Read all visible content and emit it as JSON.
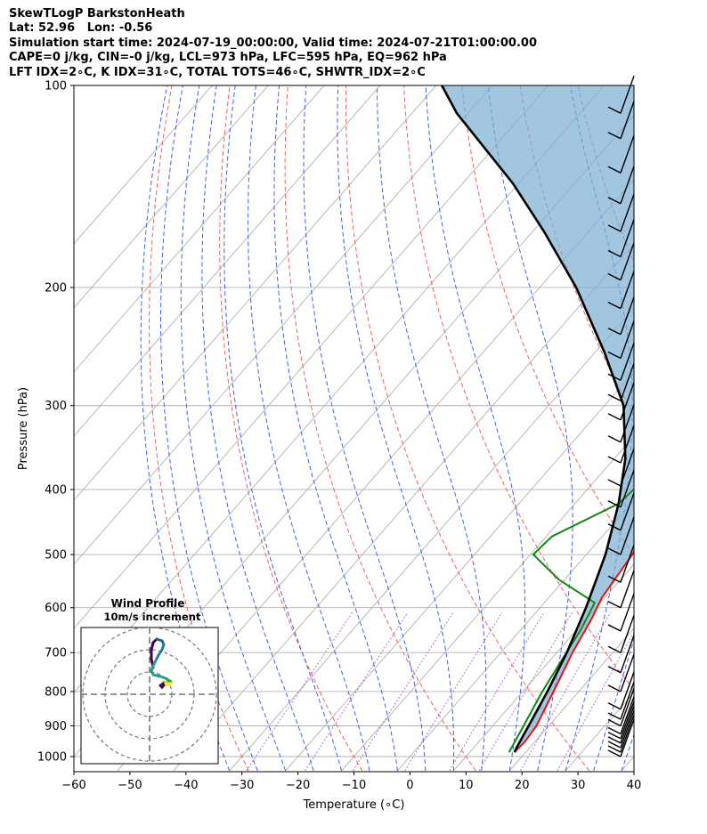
{
  "header": {
    "line1": "SkewTLogP BarkstonHeath",
    "line2": "Lat: 52.96   Lon: -0.56",
    "line3": "Simulation start time: 2024-07-19_00:00:00, Valid time: 2024-07-21T01:00:00.00",
    "line4": "CAPE=0 j/kg, CIN=-0 j/kg, LCL=973 hPa, LFC=595 hPa, EQ=962 hPa",
    "line5": "LFT IDX=2∘C, K IDX=31∘C, TOTAL TOTS=46∘C, SHWTR_IDX=2∘C"
  },
  "chart_data": {
    "type": "line",
    "title": "SkewTLogP BarkstonHeath",
    "xlabel": "Temperature (∘C)",
    "ylabel": "Pressure (hPa)",
    "xlim": [
      -60,
      40
    ],
    "ylim": [
      1050,
      100
    ],
    "y_scale": "log",
    "x_ticks": [
      -60,
      -50,
      -40,
      -30,
      -20,
      -10,
      0,
      10,
      20,
      30,
      40
    ],
    "x_tick_labels": [
      "−60",
      "−50",
      "−40",
      "−30",
      "−20",
      "−10",
      "0",
      "10",
      "20",
      "30",
      "40"
    ],
    "y_ticks": [
      1000,
      900,
      800,
      700,
      600,
      500,
      400,
      300,
      200,
      100
    ],
    "y_tick_labels": [
      "1000",
      "900",
      "800",
      "700",
      "600",
      "500",
      "400",
      "300",
      "200",
      "100"
    ],
    "grid": true,
    "series": [
      {
        "role": "temperature",
        "color": "#ee1111",
        "points": [
          [
            18,
            985
          ],
          [
            18.2,
            950
          ],
          [
            17.8,
            900
          ],
          [
            16.2,
            830
          ],
          [
            15,
            780
          ],
          [
            12.8,
            700
          ],
          [
            11,
            625
          ],
          [
            9.5,
            580
          ],
          [
            8.2,
            500
          ],
          [
            6.6,
            450
          ],
          [
            4.3,
            410
          ],
          [
            2.8,
            380
          ],
          [
            1.3,
            345
          ],
          [
            -3,
            310
          ],
          [
            -5,
            290
          ],
          [
            -4.2,
            265
          ],
          [
            -2.8,
            235
          ],
          [
            -1.6,
            218
          ],
          [
            -0.1,
            200
          ],
          [
            1,
            185
          ],
          [
            2,
            170
          ],
          [
            3.5,
            150
          ],
          [
            5,
            135
          ],
          [
            6,
            125
          ],
          [
            7.5,
            113
          ],
          [
            9,
            104
          ],
          [
            9.9,
            100
          ]
        ]
      },
      {
        "role": "dewpoint",
        "color": "#118811",
        "points": [
          [
            17,
            985
          ],
          [
            15.5,
            900
          ],
          [
            13.5,
            800
          ],
          [
            12,
            715
          ],
          [
            10.8,
            650
          ],
          [
            9,
            590
          ],
          [
            -1,
            545
          ],
          [
            -9.5,
            500
          ],
          [
            -9,
            470
          ],
          [
            -2.2,
            420
          ],
          [
            -1.2,
            380
          ],
          [
            -6.5,
            358
          ],
          [
            -7.5,
            325
          ],
          [
            -9.4,
            300
          ],
          [
            -10.8,
            278
          ],
          [
            -14,
            258
          ],
          [
            -16.6,
            240
          ],
          [
            -19.5,
            226
          ],
          [
            -21.2,
            214
          ],
          [
            -22.8,
            202
          ],
          [
            -22.8,
            190
          ],
          [
            -22,
            180
          ],
          [
            -19.5,
            160
          ],
          [
            -17,
            142
          ],
          [
            -14.5,
            128
          ],
          [
            -12.2,
            117
          ],
          [
            -10,
            108
          ],
          [
            -8.3,
            100
          ]
        ]
      },
      {
        "role": "parcel",
        "color": "#000000",
        "points": [
          [
            18,
            985
          ],
          [
            17.7,
            973
          ],
          [
            16.4,
            900
          ],
          [
            14.4,
            800
          ],
          [
            11.8,
            700
          ],
          [
            8.2,
            600
          ],
          [
            3.4,
            500
          ],
          [
            -2.2,
            420
          ],
          [
            -8,
            360
          ],
          [
            -16.6,
            300
          ],
          [
            -28.3,
            250
          ],
          [
            -43.5,
            200
          ],
          [
            -58,
            165
          ],
          [
            -71,
            140
          ],
          [
            -92,
            110
          ],
          [
            -99,
            100
          ]
        ]
      }
    ],
    "wind_barbs": {
      "pressures": [
        1000,
        985,
        970,
        955,
        940,
        925,
        900,
        880,
        850,
        800,
        750,
        700,
        650,
        600,
        550,
        500,
        460,
        425,
        395,
        365,
        340,
        315,
        295,
        275,
        255,
        235,
        215,
        195,
        180,
        165,
        150,
        135,
        120,
        110
      ]
    },
    "inset": {
      "title": "Wind Profile",
      "subtitle": "10m/s increment"
    }
  }
}
